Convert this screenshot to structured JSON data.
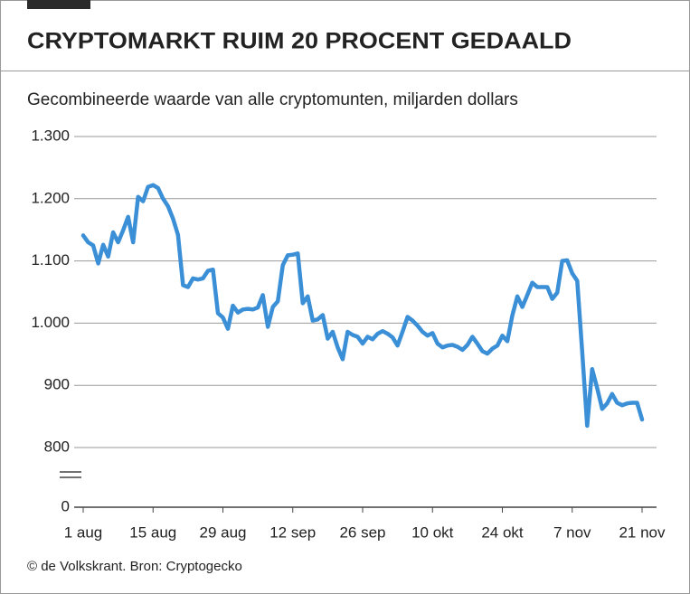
{
  "chart_data": {
    "type": "line",
    "title": "CRYPTOMARKT RUIM 20 PROCENT GEDAALD",
    "subtitle": "Gecombineerde waarde van alle cryptomunten, miljarden dollars",
    "source": "© de Volkskrant. Bron: Cryptogecko",
    "color": "#3a8fd6",
    "axis_break": true,
    "grid": true,
    "ylim": [
      800,
      1300
    ],
    "yticks": [
      {
        "value": 1300,
        "label": "1.300"
      },
      {
        "value": 1200,
        "label": "1.200"
      },
      {
        "value": 1100,
        "label": "1.100"
      },
      {
        "value": 1000,
        "label": "1.000"
      },
      900,
      800,
      0
    ],
    "categories": [
      "1 aug",
      null,
      null,
      null,
      null,
      null,
      null,
      null,
      null,
      null,
      null,
      null,
      null,
      null,
      "15 aug",
      null,
      null,
      null,
      null,
      null,
      null,
      null,
      null,
      null,
      null,
      null,
      null,
      null,
      "29 aug",
      null,
      null,
      null,
      null,
      null,
      null,
      null,
      null,
      null,
      null,
      null,
      null,
      null,
      "12 sep",
      null,
      null,
      null,
      null,
      null,
      null,
      null,
      null,
      null,
      null,
      null,
      null,
      null,
      "26 sep",
      null,
      null,
      null,
      null,
      null,
      null,
      null,
      null,
      null,
      null,
      null,
      null,
      null,
      "10 okt",
      null,
      null,
      null,
      null,
      null,
      null,
      null,
      null,
      null,
      null,
      null,
      null,
      null,
      "24 okt",
      null,
      null,
      null,
      null,
      null,
      null,
      null,
      null,
      null,
      null,
      null,
      null,
      null,
      "7 nov",
      null,
      null,
      null,
      null,
      null,
      null,
      null,
      null,
      null,
      null,
      null,
      null,
      null,
      "21 nov"
    ],
    "values": [
      1141,
      1130,
      1125,
      1096,
      1126,
      1107,
      1146,
      1130,
      1149,
      1171,
      1130,
      1203,
      1196,
      1219,
      1222,
      1217,
      1200,
      1188,
      1168,
      1142,
      1061,
      1058,
      1072,
      1070,
      1072,
      1084,
      1086,
      1016,
      1009,
      991,
      1028,
      1017,
      1022,
      1023,
      1022,
      1025,
      1045,
      994,
      1026,
      1035,
      1093,
      1109,
      1110,
      1112,
      1032,
      1043,
      1004,
      1006,
      1013,
      975,
      986,
      961,
      942,
      986,
      981,
      978,
      967,
      978,
      974,
      983,
      987,
      983,
      977,
      964,
      986,
      1010,
      1004,
      996,
      986,
      980,
      984,
      967,
      961,
      964,
      965,
      962,
      957,
      965,
      978,
      967,
      955,
      951,
      959,
      964,
      980,
      971,
      1012,
      1043,
      1026,
      1045,
      1065,
      1058,
      1058,
      1058,
      1039,
      1049,
      1100,
      1101,
      1080,
      1068,
      954,
      835,
      926,
      896,
      862,
      871,
      886,
      872,
      868,
      871,
      872,
      872,
      845
    ]
  }
}
